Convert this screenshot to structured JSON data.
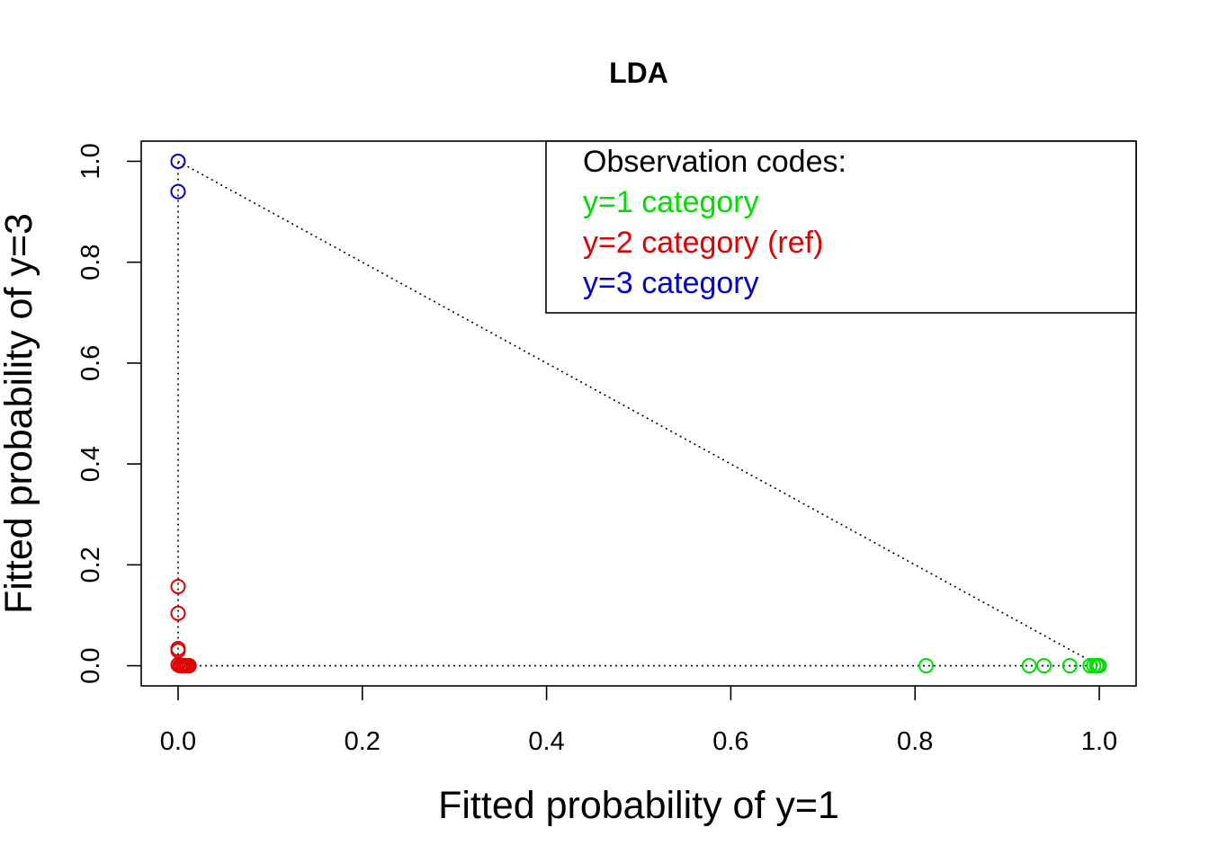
{
  "chart_data": {
    "type": "scatter",
    "title": "LDA",
    "xlabel": "Fitted probability of y=1",
    "ylabel": "Fitted probability of y=3",
    "xlim": [
      -0.04,
      1.04
    ],
    "ylim": [
      -0.04,
      1.04
    ],
    "x_ticks": [
      0.0,
      0.2,
      0.4,
      0.6,
      0.8,
      1.0
    ],
    "y_ticks": [
      0.0,
      0.2,
      0.4,
      0.6,
      0.8,
      1.0
    ],
    "x_tick_labels": [
      "0.0",
      "0.2",
      "0.4",
      "0.6",
      "0.8",
      "1.0"
    ],
    "y_tick_labels": [
      "0.0",
      "0.2",
      "0.4",
      "0.6",
      "0.8",
      "1.0"
    ],
    "grid": false,
    "legend": {
      "placement": "top-right",
      "title": "Observation codes:",
      "entries": [
        "y=1 category",
        "y=2 category (ref)",
        "y=3 category"
      ]
    },
    "reference_lines": [
      {
        "style": "dotted",
        "points": [
          [
            0,
            0
          ],
          [
            1,
            0
          ]
        ]
      },
      {
        "style": "dotted",
        "points": [
          [
            0,
            0
          ],
          [
            0,
            1
          ]
        ]
      },
      {
        "style": "dotted",
        "points": [
          [
            0,
            1
          ],
          [
            1,
            0
          ]
        ]
      }
    ],
    "series": [
      {
        "color": "#00dd00",
        "points": [
          [
            0.812,
            0.0
          ],
          [
            0.924,
            0.0
          ],
          [
            0.94,
            0.0
          ],
          [
            0.968,
            0.0
          ],
          [
            0.99,
            0.0
          ],
          [
            0.994,
            0.0
          ],
          [
            0.997,
            0.0
          ],
          [
            0.999,
            0.0
          ],
          [
            1.0,
            0.0
          ]
        ]
      },
      {
        "color": "#e00000",
        "points": [
          [
            0.0,
            0.157
          ],
          [
            0.0,
            0.104
          ],
          [
            0.0,
            0.034
          ],
          [
            0.0,
            0.03
          ],
          [
            0.0,
            0.002
          ],
          [
            0.002,
            0.0
          ],
          [
            0.004,
            0.0
          ],
          [
            0.006,
            0.0
          ],
          [
            0.008,
            0.0
          ],
          [
            0.01,
            0.0
          ],
          [
            0.012,
            0.0
          ]
        ]
      },
      {
        "color": "#0000cc",
        "points": [
          [
            0.0,
            1.0
          ],
          [
            0.0,
            0.94
          ]
        ]
      }
    ]
  }
}
